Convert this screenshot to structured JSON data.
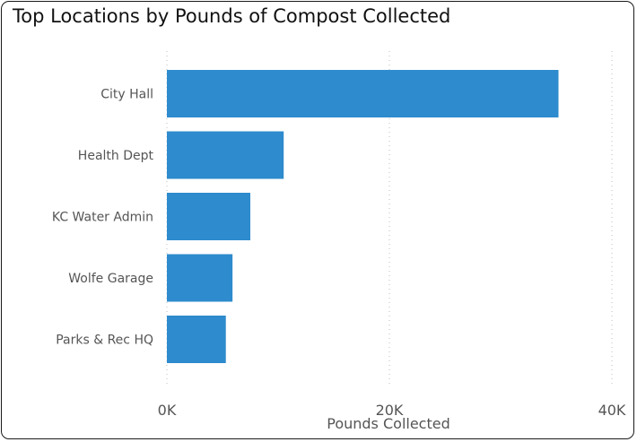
{
  "chart_data": {
    "type": "bar",
    "orientation": "horizontal",
    "title": "Top Locations by Pounds of Compost Collected",
    "categories": [
      "City Hall",
      "Health Dept",
      "KC Water Admin",
      "Wolfe Garage",
      "Parks & Rec HQ"
    ],
    "values": [
      35200,
      10500,
      7500,
      5900,
      5300
    ],
    "xlabel": "Pounds Collected",
    "ylabel": "",
    "xlim": [
      0,
      40000
    ],
    "x_ticks": [
      0,
      20000,
      40000
    ],
    "x_tick_labels": [
      "0K",
      "20K",
      "40K"
    ],
    "grid": "vertical dotted",
    "bar_color": "#2e8bcd"
  }
}
